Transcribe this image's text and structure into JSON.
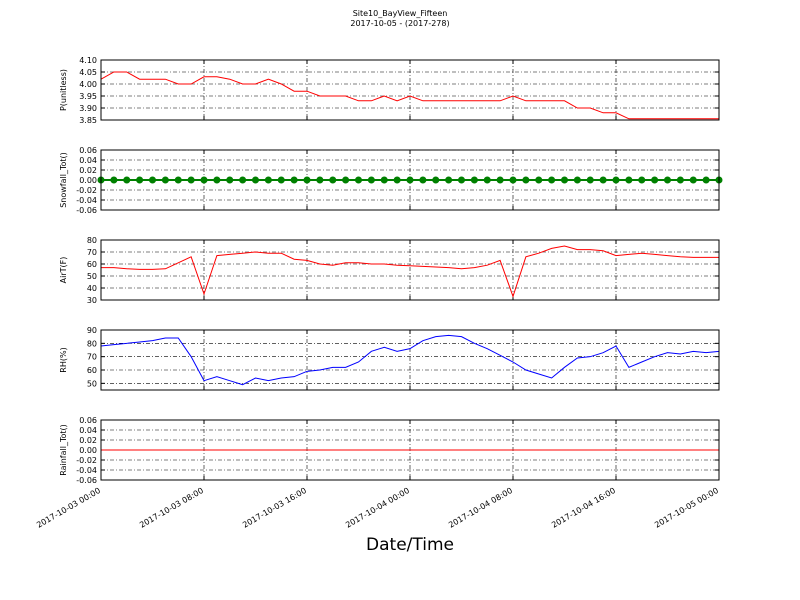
{
  "chart_data": [
    {
      "type": "line",
      "title": "Site10_BayView_Fifteen",
      "subtitle": "2017-10-05 - (2017-278)",
      "ylabel": "P(unitless)",
      "color": "#ff0000",
      "x": [
        "2017-10-03 00:00",
        "2017-10-03 01:00",
        "2017-10-03 02:00",
        "2017-10-03 03:00",
        "2017-10-03 04:00",
        "2017-10-03 05:00",
        "2017-10-03 06:00",
        "2017-10-03 07:00",
        "2017-10-03 08:00",
        "2017-10-03 09:00",
        "2017-10-03 10:00",
        "2017-10-03 11:00",
        "2017-10-03 12:00",
        "2017-10-03 13:00",
        "2017-10-03 14:00",
        "2017-10-03 15:00",
        "2017-10-03 16:00",
        "2017-10-03 17:00",
        "2017-10-03 18:00",
        "2017-10-03 19:00",
        "2017-10-03 20:00",
        "2017-10-03 21:00",
        "2017-10-03 22:00",
        "2017-10-03 23:00",
        "2017-10-04 00:00",
        "2017-10-04 01:00",
        "2017-10-04 02:00",
        "2017-10-04 03:00",
        "2017-10-04 04:00",
        "2017-10-04 05:00",
        "2017-10-04 06:00",
        "2017-10-04 07:00",
        "2017-10-04 08:00",
        "2017-10-04 09:00",
        "2017-10-04 10:00",
        "2017-10-04 11:00",
        "2017-10-04 12:00",
        "2017-10-04 13:00",
        "2017-10-04 14:00",
        "2017-10-04 15:00",
        "2017-10-04 16:00",
        "2017-10-04 17:00",
        "2017-10-04 18:00",
        "2017-10-04 19:00",
        "2017-10-04 20:00",
        "2017-10-04 21:00",
        "2017-10-04 22:00",
        "2017-10-04 23:00",
        "2017-10-05 00:00"
      ],
      "values": [
        4.02,
        4.05,
        4.05,
        4.02,
        4.02,
        4.02,
        4.0,
        4.0,
        4.03,
        4.03,
        4.02,
        4.0,
        4.0,
        4.02,
        4.0,
        3.97,
        3.97,
        3.95,
        3.95,
        3.95,
        3.93,
        3.93,
        3.95,
        3.93,
        3.95,
        3.93,
        3.93,
        3.93,
        3.93,
        3.93,
        3.93,
        3.93,
        3.95,
        3.93,
        3.93,
        3.93,
        3.93,
        3.9,
        3.9,
        3.88,
        3.88,
        3.855,
        3.855,
        3.855,
        3.855,
        3.855,
        3.855,
        3.855,
        3.855
      ],
      "xlim": [
        "2017-10-03 00:00",
        "2017-10-05 00:00"
      ],
      "xticks": [
        "2017-10-03 00:00",
        "2017-10-03 08:00",
        "2017-10-03 16:00",
        "2017-10-04 00:00",
        "2017-10-04 08:00",
        "2017-10-04 16:00",
        "2017-10-05 00:00"
      ],
      "ylim": [
        3.85,
        4.1
      ],
      "yticks": [
        3.85,
        {
          "value": 3.9,
          "label": "3.90"
        },
        {
          "value": 3.95,
          "label": "3.95"
        },
        {
          "value": 4.0,
          "label": "4.00"
        },
        4.05,
        {
          "value": 4.1,
          "label": "4.10"
        }
      ],
      "grid": true
    },
    {
      "type": "line",
      "ylabel": "Snowfall_Tot()",
      "color": "#008000",
      "marker": true,
      "x": [
        "2017-10-03 00:00",
        "2017-10-03 01:00",
        "2017-10-03 02:00",
        "2017-10-03 03:00",
        "2017-10-03 04:00",
        "2017-10-03 05:00",
        "2017-10-03 06:00",
        "2017-10-03 07:00",
        "2017-10-03 08:00",
        "2017-10-03 09:00",
        "2017-10-03 10:00",
        "2017-10-03 11:00",
        "2017-10-03 12:00",
        "2017-10-03 13:00",
        "2017-10-03 14:00",
        "2017-10-03 15:00",
        "2017-10-03 16:00",
        "2017-10-03 17:00",
        "2017-10-03 18:00",
        "2017-10-03 19:00",
        "2017-10-03 20:00",
        "2017-10-03 21:00",
        "2017-10-03 22:00",
        "2017-10-03 23:00",
        "2017-10-04 00:00",
        "2017-10-04 01:00",
        "2017-10-04 02:00",
        "2017-10-04 03:00",
        "2017-10-04 04:00",
        "2017-10-04 05:00",
        "2017-10-04 06:00",
        "2017-10-04 07:00",
        "2017-10-04 08:00",
        "2017-10-04 09:00",
        "2017-10-04 10:00",
        "2017-10-04 11:00",
        "2017-10-04 12:00",
        "2017-10-04 13:00",
        "2017-10-04 14:00",
        "2017-10-04 15:00",
        "2017-10-04 16:00",
        "2017-10-04 17:00",
        "2017-10-04 18:00",
        "2017-10-04 19:00",
        "2017-10-04 20:00",
        "2017-10-04 21:00",
        "2017-10-04 22:00",
        "2017-10-04 23:00",
        "2017-10-05 00:00"
      ],
      "values": [
        0,
        0,
        0,
        0,
        0,
        0,
        0,
        0,
        0,
        0,
        0,
        0,
        0,
        0,
        0,
        0,
        0,
        0,
        0,
        0,
        0,
        0,
        0,
        0,
        0,
        0,
        0,
        0,
        0,
        0,
        0,
        0,
        0,
        0,
        0,
        0,
        0,
        0,
        0,
        0,
        0,
        0,
        0,
        0,
        0,
        0,
        0,
        0,
        0
      ],
      "xlim": [
        "2017-10-03 00:00",
        "2017-10-05 00:00"
      ],
      "xticks": [
        "2017-10-03 00:00",
        "2017-10-03 08:00",
        "2017-10-03 16:00",
        "2017-10-04 00:00",
        "2017-10-04 08:00",
        "2017-10-04 16:00",
        "2017-10-05 00:00"
      ],
      "ylim": [
        -0.06,
        0.06
      ],
      "yticks": [
        -0.06,
        -0.04,
        -0.02,
        {
          "value": 0,
          "label": "0.00"
        },
        0.02,
        0.04,
        0.06
      ],
      "grid": true
    },
    {
      "type": "line",
      "ylabel": "AirT(F)",
      "color": "#ff0000",
      "x": [
        "2017-10-03 00:00",
        "2017-10-03 01:00",
        "2017-10-03 02:00",
        "2017-10-03 03:00",
        "2017-10-03 04:00",
        "2017-10-03 05:00",
        "2017-10-03 06:00",
        "2017-10-03 07:00",
        "2017-10-03 08:00",
        "2017-10-03 09:00",
        "2017-10-03 10:00",
        "2017-10-03 11:00",
        "2017-10-03 12:00",
        "2017-10-03 13:00",
        "2017-10-03 14:00",
        "2017-10-03 15:00",
        "2017-10-03 16:00",
        "2017-10-03 17:00",
        "2017-10-03 18:00",
        "2017-10-03 19:00",
        "2017-10-03 20:00",
        "2017-10-03 21:00",
        "2017-10-03 22:00",
        "2017-10-03 23:00",
        "2017-10-04 00:00",
        "2017-10-04 01:00",
        "2017-10-04 02:00",
        "2017-10-04 03:00",
        "2017-10-04 04:00",
        "2017-10-04 05:00",
        "2017-10-04 06:00",
        "2017-10-04 07:00",
        "2017-10-04 08:00",
        "2017-10-04 09:00",
        "2017-10-04 10:00",
        "2017-10-04 11:00",
        "2017-10-04 12:00",
        "2017-10-04 13:00",
        "2017-10-04 14:00",
        "2017-10-04 15:00",
        "2017-10-04 16:00",
        "2017-10-04 17:00",
        "2017-10-04 18:00",
        "2017-10-04 19:00",
        "2017-10-04 20:00",
        "2017-10-04 21:00",
        "2017-10-04 22:00",
        "2017-10-04 23:00",
        "2017-10-05 00:00"
      ],
      "values": [
        57,
        57,
        56,
        55.5,
        55.5,
        56,
        61,
        66,
        35,
        67,
        68,
        69,
        70,
        69,
        69,
        64,
        63,
        60,
        59,
        61,
        61,
        60,
        60,
        59,
        58.5,
        58,
        57.5,
        57,
        56,
        57,
        59,
        63,
        33,
        66,
        69,
        73,
        75,
        72,
        72,
        71,
        67,
        68,
        69,
        68,
        67,
        66,
        65.5,
        65.5,
        65.5
      ],
      "xlim": [
        "2017-10-03 00:00",
        "2017-10-05 00:00"
      ],
      "xticks": [
        "2017-10-03 00:00",
        "2017-10-03 08:00",
        "2017-10-03 16:00",
        "2017-10-04 00:00",
        "2017-10-04 08:00",
        "2017-10-04 16:00",
        "2017-10-05 00:00"
      ],
      "ylim": [
        30,
        80
      ],
      "yticks": [
        30,
        40,
        50,
        60,
        70,
        80
      ],
      "grid": true
    },
    {
      "type": "line",
      "ylabel": "RH(%)",
      "color": "#0000ff",
      "x": [
        "2017-10-03 00:00",
        "2017-10-03 01:00",
        "2017-10-03 02:00",
        "2017-10-03 03:00",
        "2017-10-03 04:00",
        "2017-10-03 05:00",
        "2017-10-03 06:00",
        "2017-10-03 07:00",
        "2017-10-03 08:00",
        "2017-10-03 09:00",
        "2017-10-03 10:00",
        "2017-10-03 11:00",
        "2017-10-03 12:00",
        "2017-10-03 13:00",
        "2017-10-03 14:00",
        "2017-10-03 15:00",
        "2017-10-03 16:00",
        "2017-10-03 17:00",
        "2017-10-03 18:00",
        "2017-10-03 19:00",
        "2017-10-03 20:00",
        "2017-10-03 21:00",
        "2017-10-03 22:00",
        "2017-10-03 23:00",
        "2017-10-04 00:00",
        "2017-10-04 01:00",
        "2017-10-04 02:00",
        "2017-10-04 03:00",
        "2017-10-04 04:00",
        "2017-10-04 05:00",
        "2017-10-04 06:00",
        "2017-10-04 07:00",
        "2017-10-04 08:00",
        "2017-10-04 09:00",
        "2017-10-04 10:00",
        "2017-10-04 11:00",
        "2017-10-04 12:00",
        "2017-10-04 13:00",
        "2017-10-04 14:00",
        "2017-10-04 15:00",
        "2017-10-04 16:00",
        "2017-10-04 17:00",
        "2017-10-04 18:00",
        "2017-10-04 19:00",
        "2017-10-04 20:00",
        "2017-10-04 21:00",
        "2017-10-04 22:00",
        "2017-10-04 23:00",
        "2017-10-05 00:00"
      ],
      "values": [
        78,
        79,
        80,
        81,
        82,
        84,
        84,
        70,
        52,
        55,
        52,
        49,
        54,
        52,
        54,
        55,
        59,
        60,
        62,
        62,
        66,
        74,
        77,
        74,
        76,
        82,
        85,
        86,
        85,
        80,
        76,
        71,
        66,
        60,
        57,
        54,
        62,
        69,
        70,
        73,
        78,
        62,
        66,
        70,
        73,
        72,
        74,
        73,
        74
      ],
      "xlim": [
        "2017-10-03 00:00",
        "2017-10-05 00:00"
      ],
      "xticks": [
        "2017-10-03 00:00",
        "2017-10-03 08:00",
        "2017-10-03 16:00",
        "2017-10-04 00:00",
        "2017-10-04 08:00",
        "2017-10-04 16:00",
        "2017-10-05 00:00"
      ],
      "ylim": [
        45,
        90
      ],
      "yticks": [
        50,
        60,
        70,
        80,
        90
      ],
      "grid": true
    },
    {
      "type": "line",
      "ylabel": "Rainfall_Tot()",
      "xlabel": "Date/Time",
      "color": "#ff0000",
      "x": [
        "2017-10-03 00:00",
        "2017-10-03 01:00",
        "2017-10-03 02:00",
        "2017-10-03 03:00",
        "2017-10-03 04:00",
        "2017-10-03 05:00",
        "2017-10-03 06:00",
        "2017-10-03 07:00",
        "2017-10-03 08:00",
        "2017-10-03 09:00",
        "2017-10-03 10:00",
        "2017-10-03 11:00",
        "2017-10-03 12:00",
        "2017-10-03 13:00",
        "2017-10-03 14:00",
        "2017-10-03 15:00",
        "2017-10-03 16:00",
        "2017-10-03 17:00",
        "2017-10-03 18:00",
        "2017-10-03 19:00",
        "2017-10-03 20:00",
        "2017-10-03 21:00",
        "2017-10-03 22:00",
        "2017-10-03 23:00",
        "2017-10-04 00:00",
        "2017-10-04 01:00",
        "2017-10-04 02:00",
        "2017-10-04 03:00",
        "2017-10-04 04:00",
        "2017-10-04 05:00",
        "2017-10-04 06:00",
        "2017-10-04 07:00",
        "2017-10-04 08:00",
        "2017-10-04 09:00",
        "2017-10-04 10:00",
        "2017-10-04 11:00",
        "2017-10-04 12:00",
        "2017-10-04 13:00",
        "2017-10-04 14:00",
        "2017-10-04 15:00",
        "2017-10-04 16:00",
        "2017-10-04 17:00",
        "2017-10-04 18:00",
        "2017-10-04 19:00",
        "2017-10-04 20:00",
        "2017-10-04 21:00",
        "2017-10-04 22:00",
        "2017-10-04 23:00",
        "2017-10-05 00:00"
      ],
      "values": [
        0,
        0,
        0,
        0,
        0,
        0,
        0,
        0,
        0,
        0,
        0,
        0,
        0,
        0,
        0,
        0,
        0,
        0,
        0,
        0,
        0,
        0,
        0,
        0,
        0,
        0,
        0,
        0,
        0,
        0,
        0,
        0,
        0,
        0,
        0,
        0,
        0,
        0,
        0,
        0,
        0,
        0,
        0,
        0,
        0,
        0,
        0,
        0,
        0
      ],
      "xlim": [
        "2017-10-03 00:00",
        "2017-10-05 00:00"
      ],
      "xticks": [
        "2017-10-03 00:00",
        "2017-10-03 08:00",
        "2017-10-03 16:00",
        "2017-10-04 00:00",
        "2017-10-04 08:00",
        "2017-10-04 16:00",
        "2017-10-05 00:00"
      ],
      "xtick_labels": true,
      "ylim": [
        -0.06,
        0.06
      ],
      "yticks": [
        -0.06,
        -0.04,
        -0.02,
        {
          "value": 0,
          "label": "0.00"
        },
        0.02,
        0.04,
        0.06
      ],
      "grid": true
    }
  ]
}
